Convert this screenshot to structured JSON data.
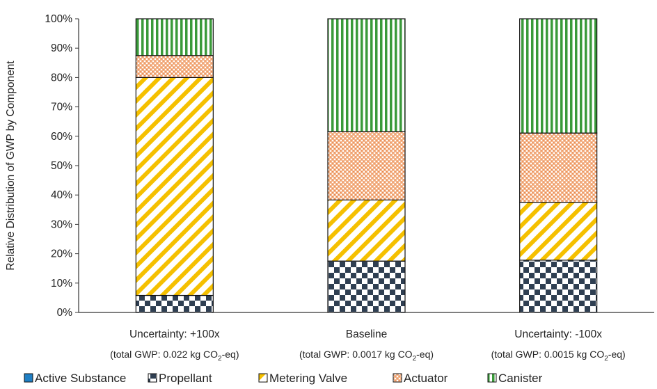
{
  "chart_data": {
    "type": "bar",
    "stacked": true,
    "percent": true,
    "ylabel": "Relative Distribution of GWP by Component",
    "ylim": [
      0,
      100
    ],
    "yticks": [
      "0%",
      "10%",
      "20%",
      "30%",
      "40%",
      "50%",
      "60%",
      "70%",
      "80%",
      "90%",
      "100%"
    ],
    "categories": [
      {
        "label": "Uncertainty: +100x",
        "sub_prefix": "(total GWP: 0.022 kg CO",
        "sub_sub": "2",
        "sub_suffix": "-eq)"
      },
      {
        "label": "Baseline",
        "sub_prefix": "(total GWP: 0.0017 kg CO",
        "sub_sub": "2",
        "sub_suffix": "-eq)"
      },
      {
        "label": "Uncertainty: -100x",
        "sub_prefix": "(total GWP: 0.0015 kg CO",
        "sub_sub": "2",
        "sub_suffix": "-eq)"
      }
    ],
    "series": [
      {
        "name": "Active Substance",
        "pattern": "solid",
        "color": "#1f7fc4",
        "values": [
          0,
          0,
          0
        ]
      },
      {
        "name": "Propellant",
        "pattern": "checker",
        "color": "#2f3f52",
        "values": [
          5.8,
          17.5,
          17.8
        ]
      },
      {
        "name": "Metering Valve",
        "pattern": "diagonal",
        "color": "#f5c000",
        "values": [
          74.2,
          20.8,
          19.7
        ]
      },
      {
        "name": "Actuator",
        "pattern": "dots",
        "color": "#f0a070",
        "values": [
          7.5,
          23.3,
          23.6
        ]
      },
      {
        "name": "Canister",
        "pattern": "vertical",
        "color": "#3a9a3a",
        "values": [
          12.5,
          38.4,
          38.9
        ]
      }
    ],
    "legend_position": "bottom",
    "grid": false
  }
}
